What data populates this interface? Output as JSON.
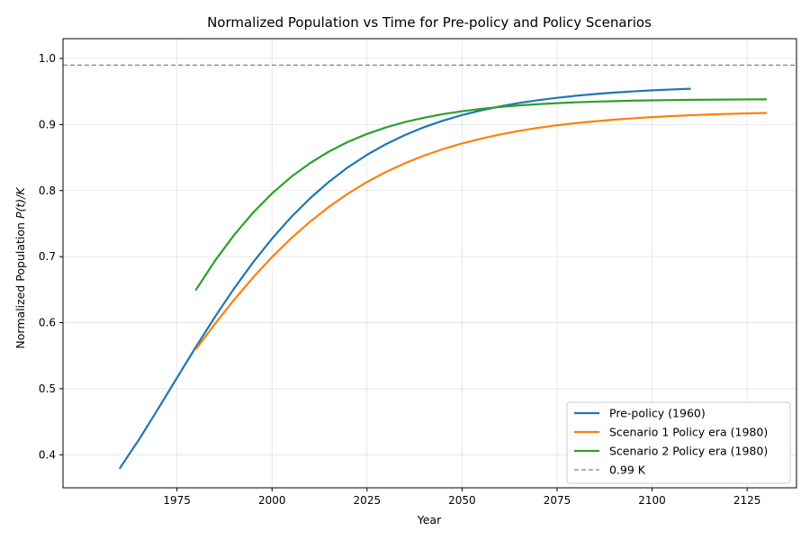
{
  "chart_data": {
    "type": "line",
    "title": "Normalized Population vs Time for Pre-policy and Policy Scenarios",
    "xlabel": "Year",
    "ylabel": "Normalized Population ",
    "ylabel_math": "P(t)/K",
    "xlim": [
      1945,
      2138
    ],
    "ylim": [
      0.35,
      1.03
    ],
    "xticks": [
      1975,
      2000,
      2025,
      2050,
      2075,
      2100,
      2125
    ],
    "yticks": [
      0.4,
      0.5,
      0.6,
      0.7,
      0.8,
      0.9,
      1.0
    ],
    "ytick_labels": [
      "0.4",
      "0.5",
      "0.6",
      "0.7",
      "0.8",
      "0.9",
      "1.0"
    ],
    "grid": true,
    "legend_position": "lower-right",
    "series": [
      {
        "name": "Pre-policy (1960)",
        "color": "#1f77b4",
        "x": [
          1960,
          1965,
          1970,
          1975,
          1980,
          1985,
          1990,
          1995,
          2000,
          2005,
          2010,
          2015,
          2020,
          2025,
          2030,
          2035,
          2040,
          2045,
          2050,
          2055,
          2060,
          2065,
          2070,
          2075,
          2080,
          2085,
          2090,
          2095,
          2100,
          2105,
          2110
        ],
        "y": [
          0.38,
          0.4231,
          0.4693,
          0.5166,
          0.5636,
          0.6089,
          0.6517,
          0.6913,
          0.7273,
          0.7597,
          0.7883,
          0.8135,
          0.8354,
          0.8542,
          0.8704,
          0.8842,
          0.896,
          0.9059,
          0.9144,
          0.9215,
          0.9275,
          0.9326,
          0.9369,
          0.9405,
          0.9436,
          0.9462,
          0.9484,
          0.9502,
          0.9518,
          0.9531,
          0.9542
        ]
      },
      {
        "name": "Scenario 1 Policy era (1980)",
        "color": "#ff7f0e",
        "x": [
          1980,
          1985,
          1990,
          1995,
          2000,
          2005,
          2010,
          2015,
          2020,
          2025,
          2030,
          2035,
          2040,
          2045,
          2050,
          2055,
          2060,
          2065,
          2070,
          2075,
          2080,
          2085,
          2090,
          2095,
          2100,
          2105,
          2110,
          2115,
          2120,
          2125,
          2130
        ],
        "y": [
          0.56,
          0.5983,
          0.6345,
          0.6683,
          0.6993,
          0.7276,
          0.7529,
          0.7755,
          0.7955,
          0.813,
          0.8283,
          0.8415,
          0.853,
          0.8629,
          0.8714,
          0.8787,
          0.885,
          0.8904,
          0.895,
          0.8989,
          0.9022,
          0.905,
          0.9074,
          0.9095,
          0.9113,
          0.9128,
          0.9141,
          0.9152,
          0.9161,
          0.9169,
          0.9176
        ]
      },
      {
        "name": "Scenario 2 Policy era (1980)",
        "color": "#2ca02c",
        "x": [
          1980,
          1985,
          1990,
          1995,
          2000,
          2005,
          2010,
          2015,
          2020,
          2025,
          2030,
          2035,
          2040,
          2045,
          2050,
          2055,
          2060,
          2065,
          2070,
          2075,
          2080,
          2085,
          2090,
          2095,
          2100,
          2105,
          2110,
          2115,
          2120,
          2125,
          2130
        ],
        "y": [
          0.65,
          0.6938,
          0.7326,
          0.7665,
          0.7957,
          0.8206,
          0.8416,
          0.8592,
          0.8738,
          0.8858,
          0.8957,
          0.9038,
          0.9104,
          0.9158,
          0.9202,
          0.9238,
          0.9267,
          0.929,
          0.9309,
          0.9324,
          0.9337,
          0.9347,
          0.9355,
          0.9362,
          0.9367,
          0.9371,
          0.9374,
          0.9377,
          0.9379,
          0.9381,
          0.9382
        ]
      }
    ],
    "reference_line": {
      "name": "0.99 K",
      "y": 0.99,
      "color": "#808080",
      "style": "dashed"
    }
  }
}
